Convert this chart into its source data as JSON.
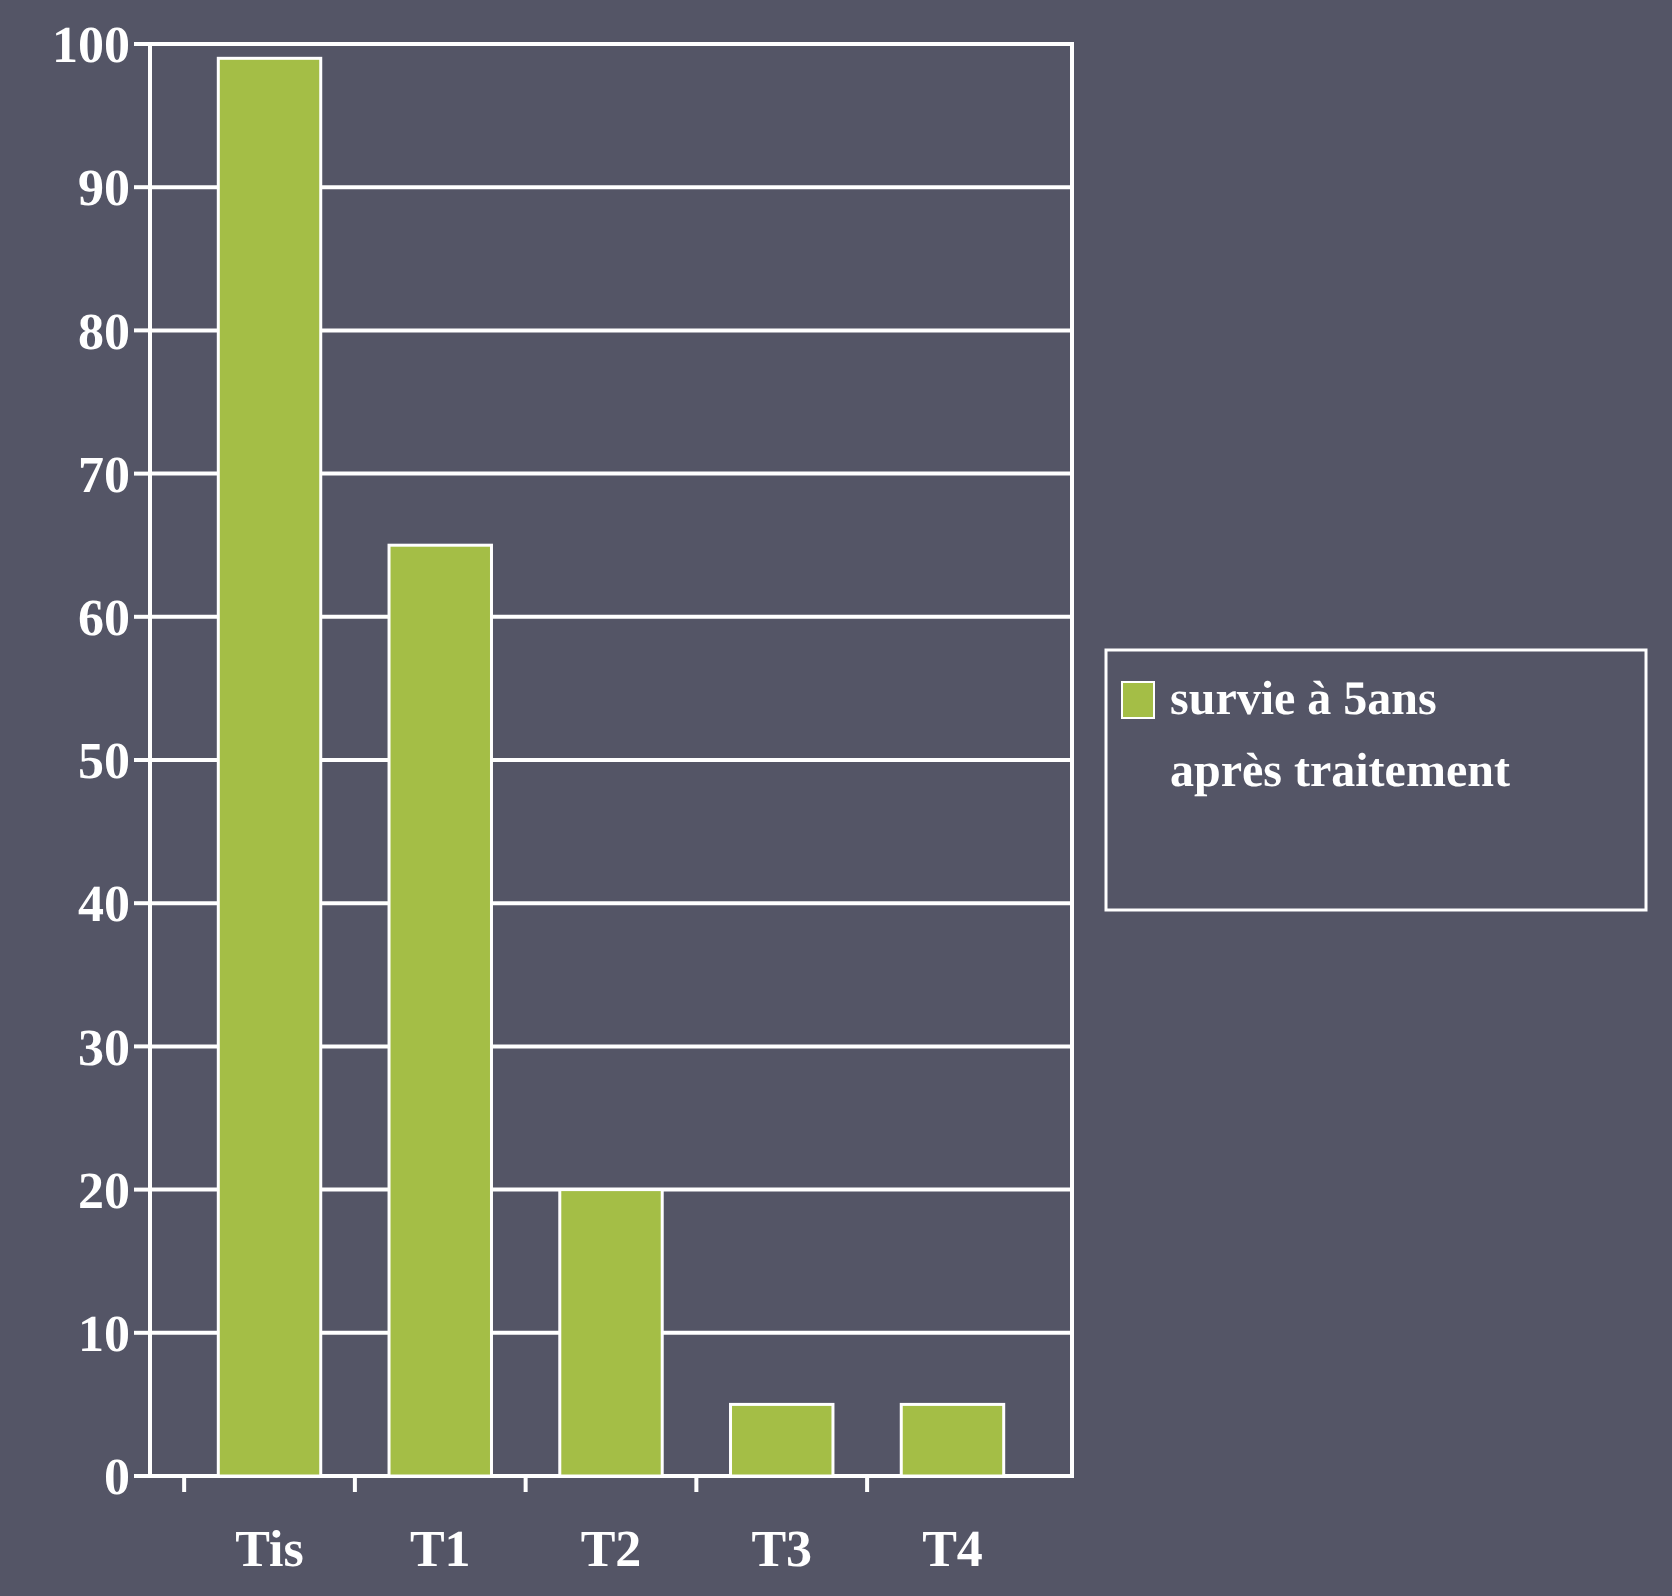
{
  "chart_data": {
    "type": "bar",
    "categories": [
      "Tis",
      "T1",
      "T2",
      "T3",
      "T4"
    ],
    "series": [
      {
        "name": "survie à 5ans après traitement",
        "color": "#a4be46",
        "values": [
          99,
          65,
          20,
          5,
          5
        ]
      }
    ],
    "ylim": [
      0,
      100
    ],
    "yticks": [
      0,
      10,
      20,
      30,
      40,
      50,
      60,
      70,
      80,
      90,
      100
    ],
    "grid": "y",
    "legend": "right"
  }
}
